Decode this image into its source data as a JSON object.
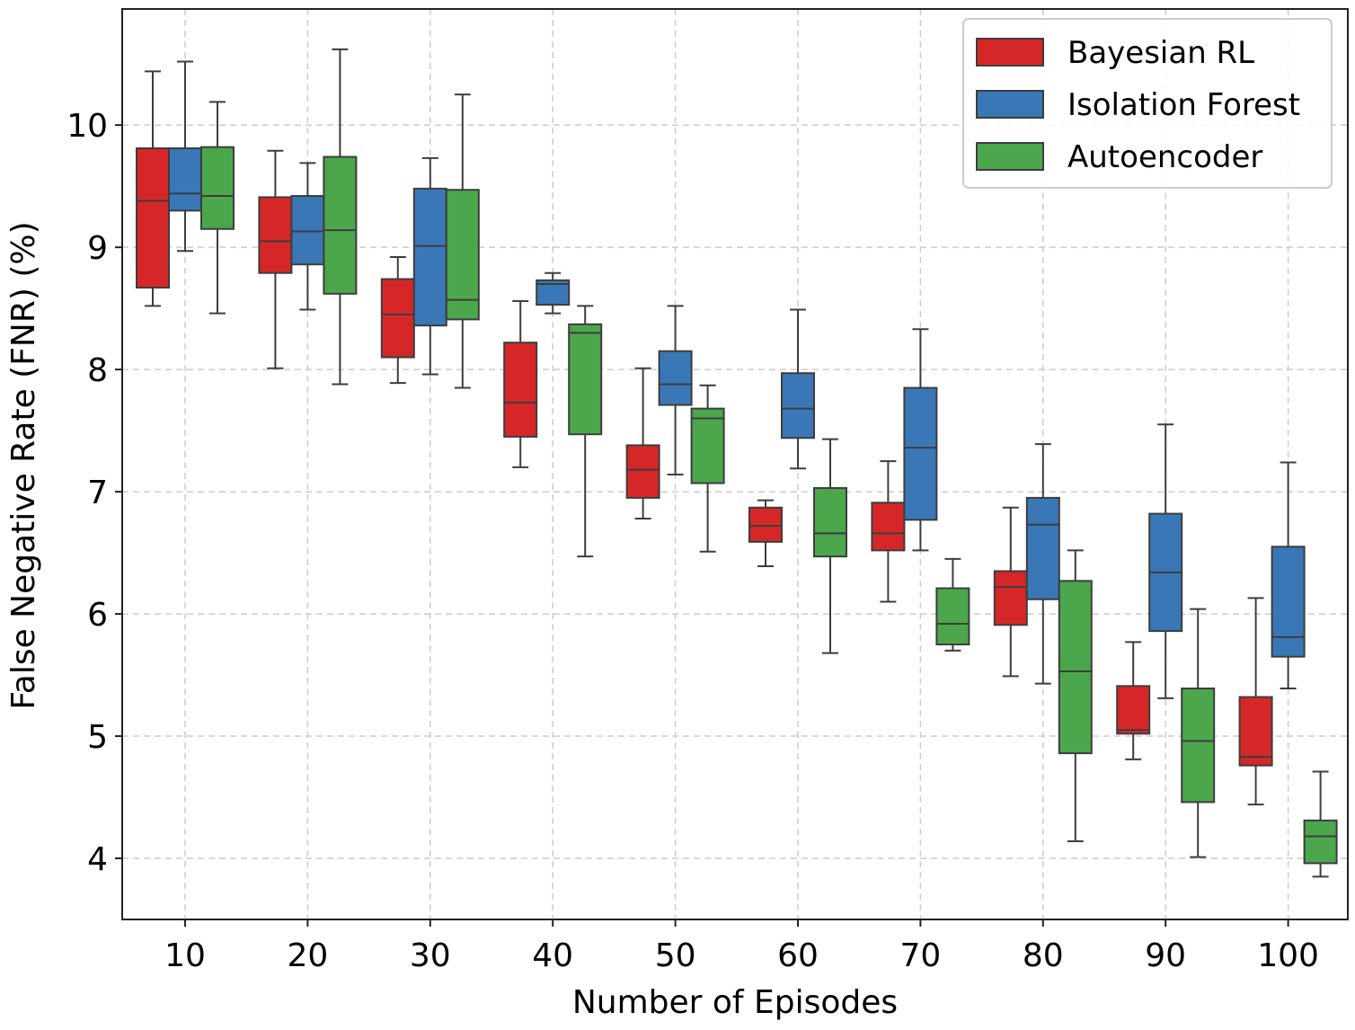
{
  "chart_data": {
    "type": "box",
    "title": "",
    "xlabel": "Number of Episodes",
    "ylabel": "False Negative Rate (FNR) (%)",
    "categories": [
      "10",
      "20",
      "30",
      "40",
      "50",
      "60",
      "70",
      "80",
      "90",
      "100"
    ],
    "ylim": [
      3.5,
      10.95
    ],
    "yticks": [
      "4",
      "5",
      "6",
      "7",
      "8",
      "9",
      "10"
    ],
    "grid": true,
    "legend_position": "top-right",
    "series": [
      {
        "name": "Bayesian RL",
        "color": "#d62728",
        "boxes": [
          {
            "whislo": 8.52,
            "q1": 8.67,
            "med": 9.38,
            "q3": 9.81,
            "whishi": 10.44
          },
          {
            "whislo": 8.01,
            "q1": 8.79,
            "med": 9.05,
            "q3": 9.41,
            "whishi": 9.79
          },
          {
            "whislo": 7.89,
            "q1": 8.1,
            "med": 8.45,
            "q3": 8.74,
            "whishi": 8.92
          },
          {
            "whislo": 7.2,
            "q1": 7.45,
            "med": 7.73,
            "q3": 8.22,
            "whishi": 8.56
          },
          {
            "whislo": 6.78,
            "q1": 6.95,
            "med": 7.18,
            "q3": 7.38,
            "whishi": 8.01
          },
          {
            "whislo": 6.39,
            "q1": 6.59,
            "med": 6.72,
            "q3": 6.87,
            "whishi": 6.93
          },
          {
            "whislo": 6.1,
            "q1": 6.52,
            "med": 6.66,
            "q3": 6.91,
            "whishi": 7.25
          },
          {
            "whislo": 5.49,
            "q1": 5.91,
            "med": 6.22,
            "q3": 6.35,
            "whishi": 6.87
          },
          {
            "whislo": 4.81,
            "q1": 5.02,
            "med": 5.05,
            "q3": 5.41,
            "whishi": 5.77
          },
          {
            "whislo": 4.44,
            "q1": 4.76,
            "med": 4.83,
            "q3": 5.32,
            "whishi": 6.13
          }
        ]
      },
      {
        "name": "Isolation Forest",
        "color": "#3a77b6",
        "boxes": [
          {
            "whislo": 8.97,
            "q1": 9.3,
            "med": 9.44,
            "q3": 9.81,
            "whishi": 10.52
          },
          {
            "whislo": 8.49,
            "q1": 8.86,
            "med": 9.13,
            "q3": 9.42,
            "whishi": 9.69
          },
          {
            "whislo": 7.96,
            "q1": 8.36,
            "med": 9.01,
            "q3": 9.48,
            "whishi": 9.73
          },
          {
            "whislo": 8.46,
            "q1": 8.53,
            "med": 8.7,
            "q3": 8.73,
            "whishi": 8.79
          },
          {
            "whislo": 7.14,
            "q1": 7.71,
            "med": 7.88,
            "q3": 8.15,
            "whishi": 8.52
          },
          {
            "whislo": 7.19,
            "q1": 7.44,
            "med": 7.68,
            "q3": 7.97,
            "whishi": 8.49
          },
          {
            "whislo": 6.52,
            "q1": 6.77,
            "med": 7.36,
            "q3": 7.85,
            "whishi": 8.33
          },
          {
            "whislo": 5.43,
            "q1": 6.12,
            "med": 6.73,
            "q3": 6.95,
            "whishi": 7.39
          },
          {
            "whislo": 5.31,
            "q1": 5.86,
            "med": 6.34,
            "q3": 6.82,
            "whishi": 7.55
          },
          {
            "whislo": 5.39,
            "q1": 5.65,
            "med": 5.81,
            "q3": 6.55,
            "whishi": 7.24
          }
        ]
      },
      {
        "name": "Autoencoder",
        "color": "#4ca64c",
        "boxes": [
          {
            "whislo": 8.46,
            "q1": 9.15,
            "med": 9.42,
            "q3": 9.82,
            "whishi": 10.19
          },
          {
            "whislo": 7.88,
            "q1": 8.62,
            "med": 9.14,
            "q3": 9.74,
            "whishi": 10.62
          },
          {
            "whislo": 7.85,
            "q1": 8.41,
            "med": 8.57,
            "q3": 9.47,
            "whishi": 10.25
          },
          {
            "whislo": 6.47,
            "q1": 7.47,
            "med": 8.3,
            "q3": 8.37,
            "whishi": 8.52
          },
          {
            "whislo": 6.51,
            "q1": 7.07,
            "med": 7.6,
            "q3": 7.68,
            "whishi": 7.87
          },
          {
            "whislo": 5.68,
            "q1": 6.47,
            "med": 6.66,
            "q3": 7.03,
            "whishi": 7.43
          },
          {
            "whislo": 5.7,
            "q1": 5.75,
            "med": 5.92,
            "q3": 6.21,
            "whishi": 6.45
          },
          {
            "whislo": 4.14,
            "q1": 4.86,
            "med": 5.53,
            "q3": 6.27,
            "whishi": 6.52
          },
          {
            "whislo": 4.01,
            "q1": 4.46,
            "med": 4.96,
            "q3": 5.39,
            "whishi": 6.04
          },
          {
            "whislo": 3.85,
            "q1": 3.96,
            "med": 4.18,
            "q3": 4.31,
            "whishi": 4.71
          }
        ]
      }
    ]
  }
}
